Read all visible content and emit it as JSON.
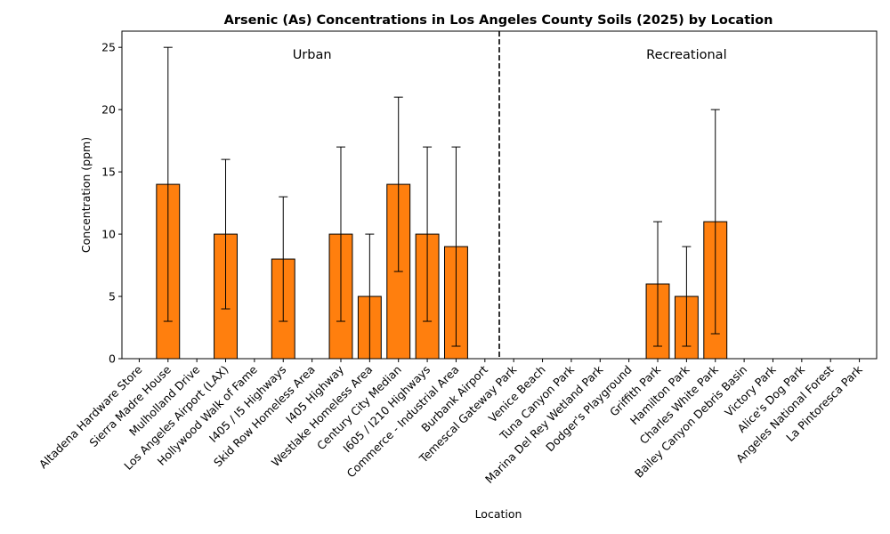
{
  "chart_data": {
    "type": "bar",
    "title": "Arsenic (As) Concentrations in Los Angeles County Soils (2025) by Location",
    "xlabel": "Location",
    "ylabel": "Concentration (ppm)",
    "ylim": [
      0,
      26.3
    ],
    "yticks": [
      0,
      5,
      10,
      15,
      20,
      25
    ],
    "bar_color": "#ff7f0e",
    "categories": [
      "Altadena Hardware Store",
      "Sierra Madre House",
      "Mulholland Drive",
      "Los Angeles Airport (LAX)",
      "Hollywood Walk of Fame",
      "I405 / I5 Highways",
      "Skid Row Homeless Area",
      "I405 Highway",
      "Westlake Homeless Area",
      "Century City Median",
      "I605 / I210 Highways",
      "Commerce - Industrial Area",
      "Burbank Airport",
      "Temescal Gateway Park",
      "Venice Beach",
      "Tuna Canyon Park",
      "Marina Del Rey Wetland Park",
      "Dodger's Playground",
      "Griffith Park",
      "Hamilton Park",
      "Charles White Park",
      "Bailey Canyon Debris Basin",
      "Victory Park",
      "Alice's Dog Park",
      "Angeles National Forest",
      "La Pintoresca Park"
    ],
    "values": [
      0,
      14,
      0,
      10,
      0,
      8,
      0,
      10,
      5,
      14,
      10,
      9,
      0,
      0,
      0,
      0,
      0,
      0,
      6,
      5,
      11,
      0,
      0,
      0,
      0,
      0
    ],
    "error_low": [
      null,
      3,
      null,
      4,
      null,
      3,
      null,
      3,
      0,
      7,
      3,
      1,
      null,
      null,
      null,
      null,
      null,
      null,
      1,
      1,
      2,
      null,
      null,
      null,
      null,
      null
    ],
    "error_high": [
      null,
      25,
      null,
      16,
      null,
      13,
      null,
      17,
      10,
      21,
      17,
      17,
      null,
      null,
      null,
      null,
      null,
      null,
      11,
      9,
      20,
      null,
      null,
      null,
      null,
      null
    ],
    "divider_after_category_index": 12,
    "groups": [
      {
        "label": "Urban",
        "center_category_index": 6
      },
      {
        "label": "Recreational",
        "center_category_index": 19
      }
    ]
  }
}
